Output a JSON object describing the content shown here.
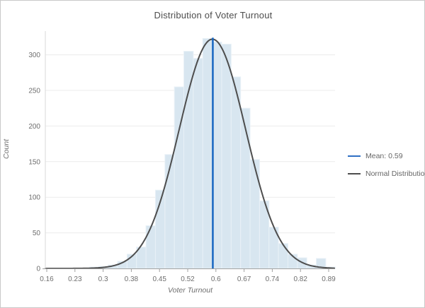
{
  "window": {
    "background": "#ffffff",
    "border_color": "#c9c9c9"
  },
  "title": "Distribution of Voter Turnout",
  "legend": {
    "items": [
      {
        "label": "Mean: 0.59",
        "color": "#2e6fc4",
        "swatch": "line"
      },
      {
        "label": "Normal Distribution",
        "color": "#4d4d4d",
        "swatch": "line"
      }
    ]
  },
  "chart_data": {
    "type": "bar",
    "subtype": "histogram",
    "title": "Distribution of Voter Turnout",
    "xlabel": "Voter Turnout",
    "ylabel": "Count",
    "x_tick_labels": [
      "0.16",
      "0.23",
      "0.3",
      "0.38",
      "0.45",
      "0.52",
      "0.6",
      "0.67",
      "0.74",
      "0.82",
      "0.89"
    ],
    "x_axis_range": [
      0.16,
      0.89
    ],
    "y_ticks": [
      0,
      50,
      100,
      150,
      200,
      250,
      300
    ],
    "ylim": [
      0,
      325
    ],
    "grid": "horizontal-only",
    "legend_position": "right",
    "bin_start": 0.27,
    "bin_width": 0.0245,
    "bin_centers": [
      0.282,
      0.307,
      0.331,
      0.356,
      0.38,
      0.405,
      0.429,
      0.453,
      0.478,
      0.502,
      0.527,
      0.551,
      0.576,
      0.6,
      0.625,
      0.649,
      0.674,
      0.698,
      0.723,
      0.747,
      0.772,
      0.796,
      0.82,
      0.845,
      0.869,
      0.894
    ],
    "counts": [
      2,
      3,
      5,
      10,
      20,
      30,
      60,
      110,
      160,
      255,
      305,
      295,
      323,
      318,
      315,
      269,
      225,
      153,
      95,
      58,
      35,
      20,
      15,
      5,
      14,
      2
    ],
    "mean": 0.59,
    "mean_label": "Mean: 0.59",
    "normal_curve": {
      "label": "Normal Distribution",
      "mu": 0.589,
      "sigma": 0.086,
      "peak_count": 322
    },
    "colors": {
      "bar_fill": "#d8e6f0",
      "bar_stroke": "#e9f1f7",
      "curve": "#4d4d4d",
      "mean_line": "#1565c0",
      "grid": "#ececec",
      "axis_line": "#a0a0a0",
      "y_axis_line": "#d9d9d9",
      "tick": "#a0a0a0",
      "tick_label": "#6e6e6e",
      "title": "#4d4d4d"
    }
  }
}
